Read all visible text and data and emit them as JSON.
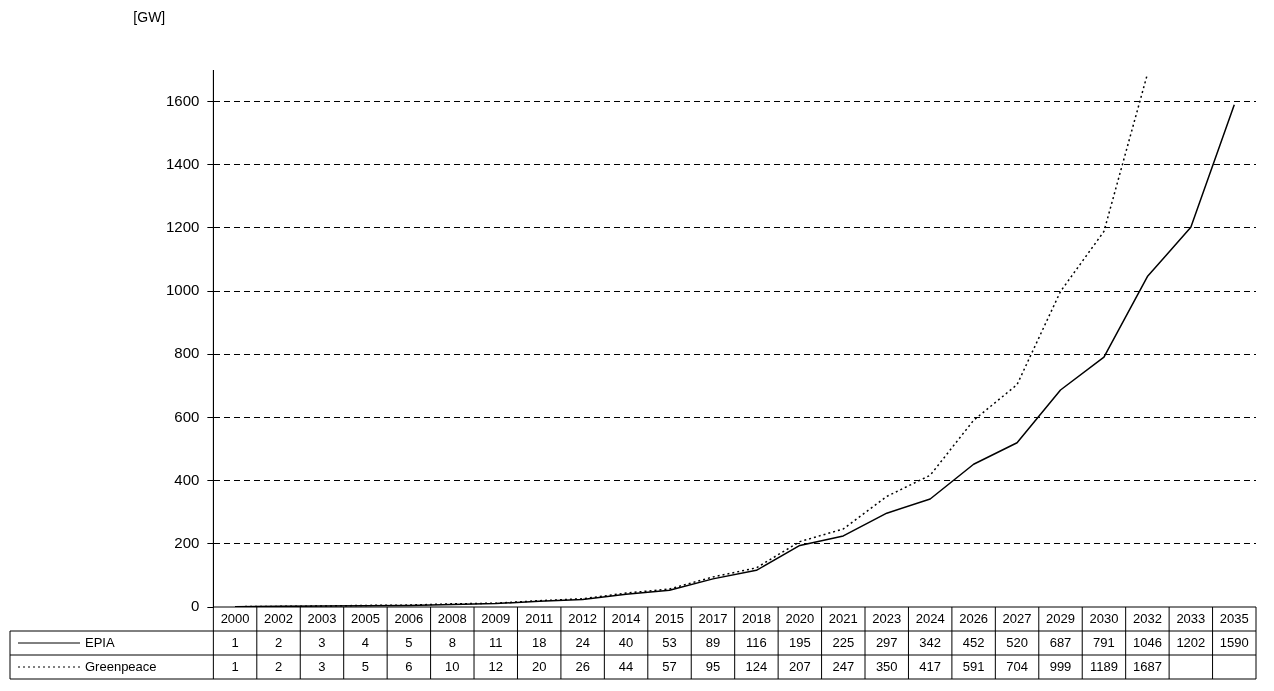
{
  "chart_data": {
    "type": "line",
    "ylabel": "[GW]",
    "categories": [
      "2000",
      "2002",
      "2003",
      "2005",
      "2006",
      "2008",
      "2009",
      "2011",
      "2012",
      "2014",
      "2015",
      "2017",
      "2018",
      "2020",
      "2021",
      "2023",
      "2024",
      "2026",
      "2027",
      "2029",
      "2030",
      "2032",
      "2033",
      "2035"
    ],
    "series": [
      {
        "name": "EPIA",
        "color": "#000000",
        "line_style": "solid",
        "values": [
          1,
          2,
          3,
          4,
          5,
          8,
          11,
          18,
          24,
          40,
          53,
          89,
          116,
          195,
          225,
          297,
          342,
          452,
          520,
          687,
          791,
          1046,
          1202,
          1590
        ]
      },
      {
        "name": "Greenpeace",
        "color": "#000000",
        "line_style": "dotted",
        "values": [
          1,
          2,
          3,
          5,
          6,
          10,
          12,
          20,
          26,
          44,
          57,
          95,
          124,
          207,
          247,
          350,
          417,
          591,
          704,
          999,
          1189,
          1687,
          null,
          null
        ]
      }
    ],
    "ylim": [
      0,
      1700
    ],
    "yticks": [
      0,
      200,
      400,
      600,
      800,
      1000,
      1200,
      1400,
      1600
    ],
    "grid": "y",
    "legend": "bottom left",
    "data_labels": true,
    "marker": "none"
  }
}
